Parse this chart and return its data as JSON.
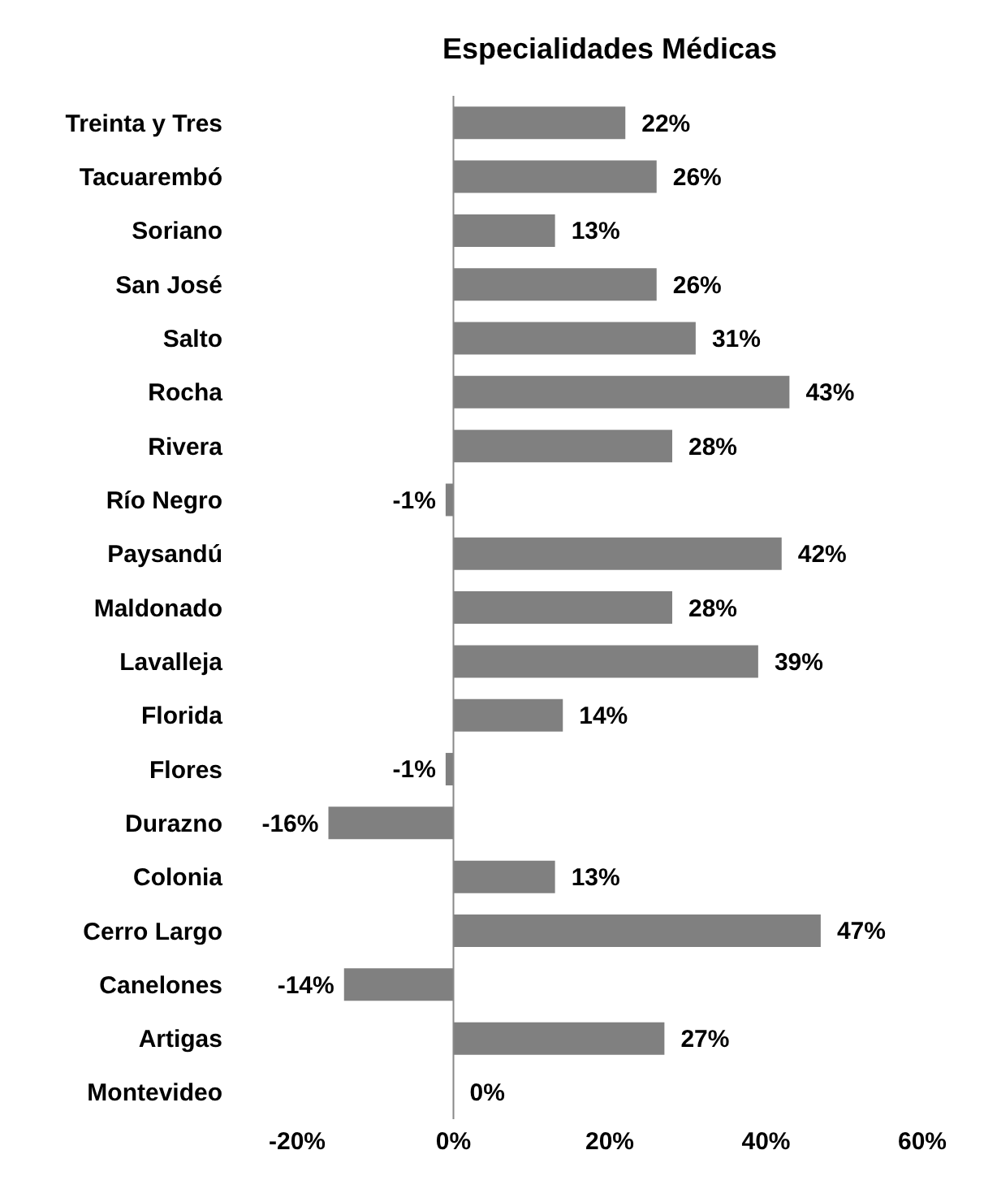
{
  "chart_data": {
    "type": "bar",
    "orientation": "horizontal",
    "title": "Especialidades Médicas",
    "categories": [
      "Treinta y Tres",
      "Tacuarembó",
      "Soriano",
      "San José",
      "Salto",
      "Rocha",
      "Rivera",
      "Río Negro",
      "Paysandú",
      "Maldonado",
      "Lavalleja",
      "Florida",
      "Flores",
      "Durazno",
      "Colonia",
      "Cerro Largo",
      "Canelones",
      "Artigas",
      "Montevideo"
    ],
    "values": [
      22,
      26,
      13,
      26,
      31,
      43,
      28,
      -1,
      42,
      28,
      39,
      14,
      -1,
      -16,
      13,
      47,
      -14,
      27,
      0
    ],
    "value_labels": [
      "22%",
      "26%",
      "13%",
      "26%",
      "31%",
      "43%",
      "28%",
      "-1%",
      "42%",
      "28%",
      "39%",
      "14%",
      "-1%",
      "-16%",
      "13%",
      "47%",
      "-14%",
      "27%",
      "0%"
    ],
    "color": "#808080",
    "xlim": [
      -20,
      60
    ],
    "xticks": [
      {
        "value": -20,
        "label": "-20%"
      },
      {
        "value": 0,
        "label": "0%"
      },
      {
        "value": 20,
        "label": "20%"
      },
      {
        "value": 40,
        "label": "40%"
      },
      {
        "value": 60,
        "label": "60%"
      }
    ]
  }
}
